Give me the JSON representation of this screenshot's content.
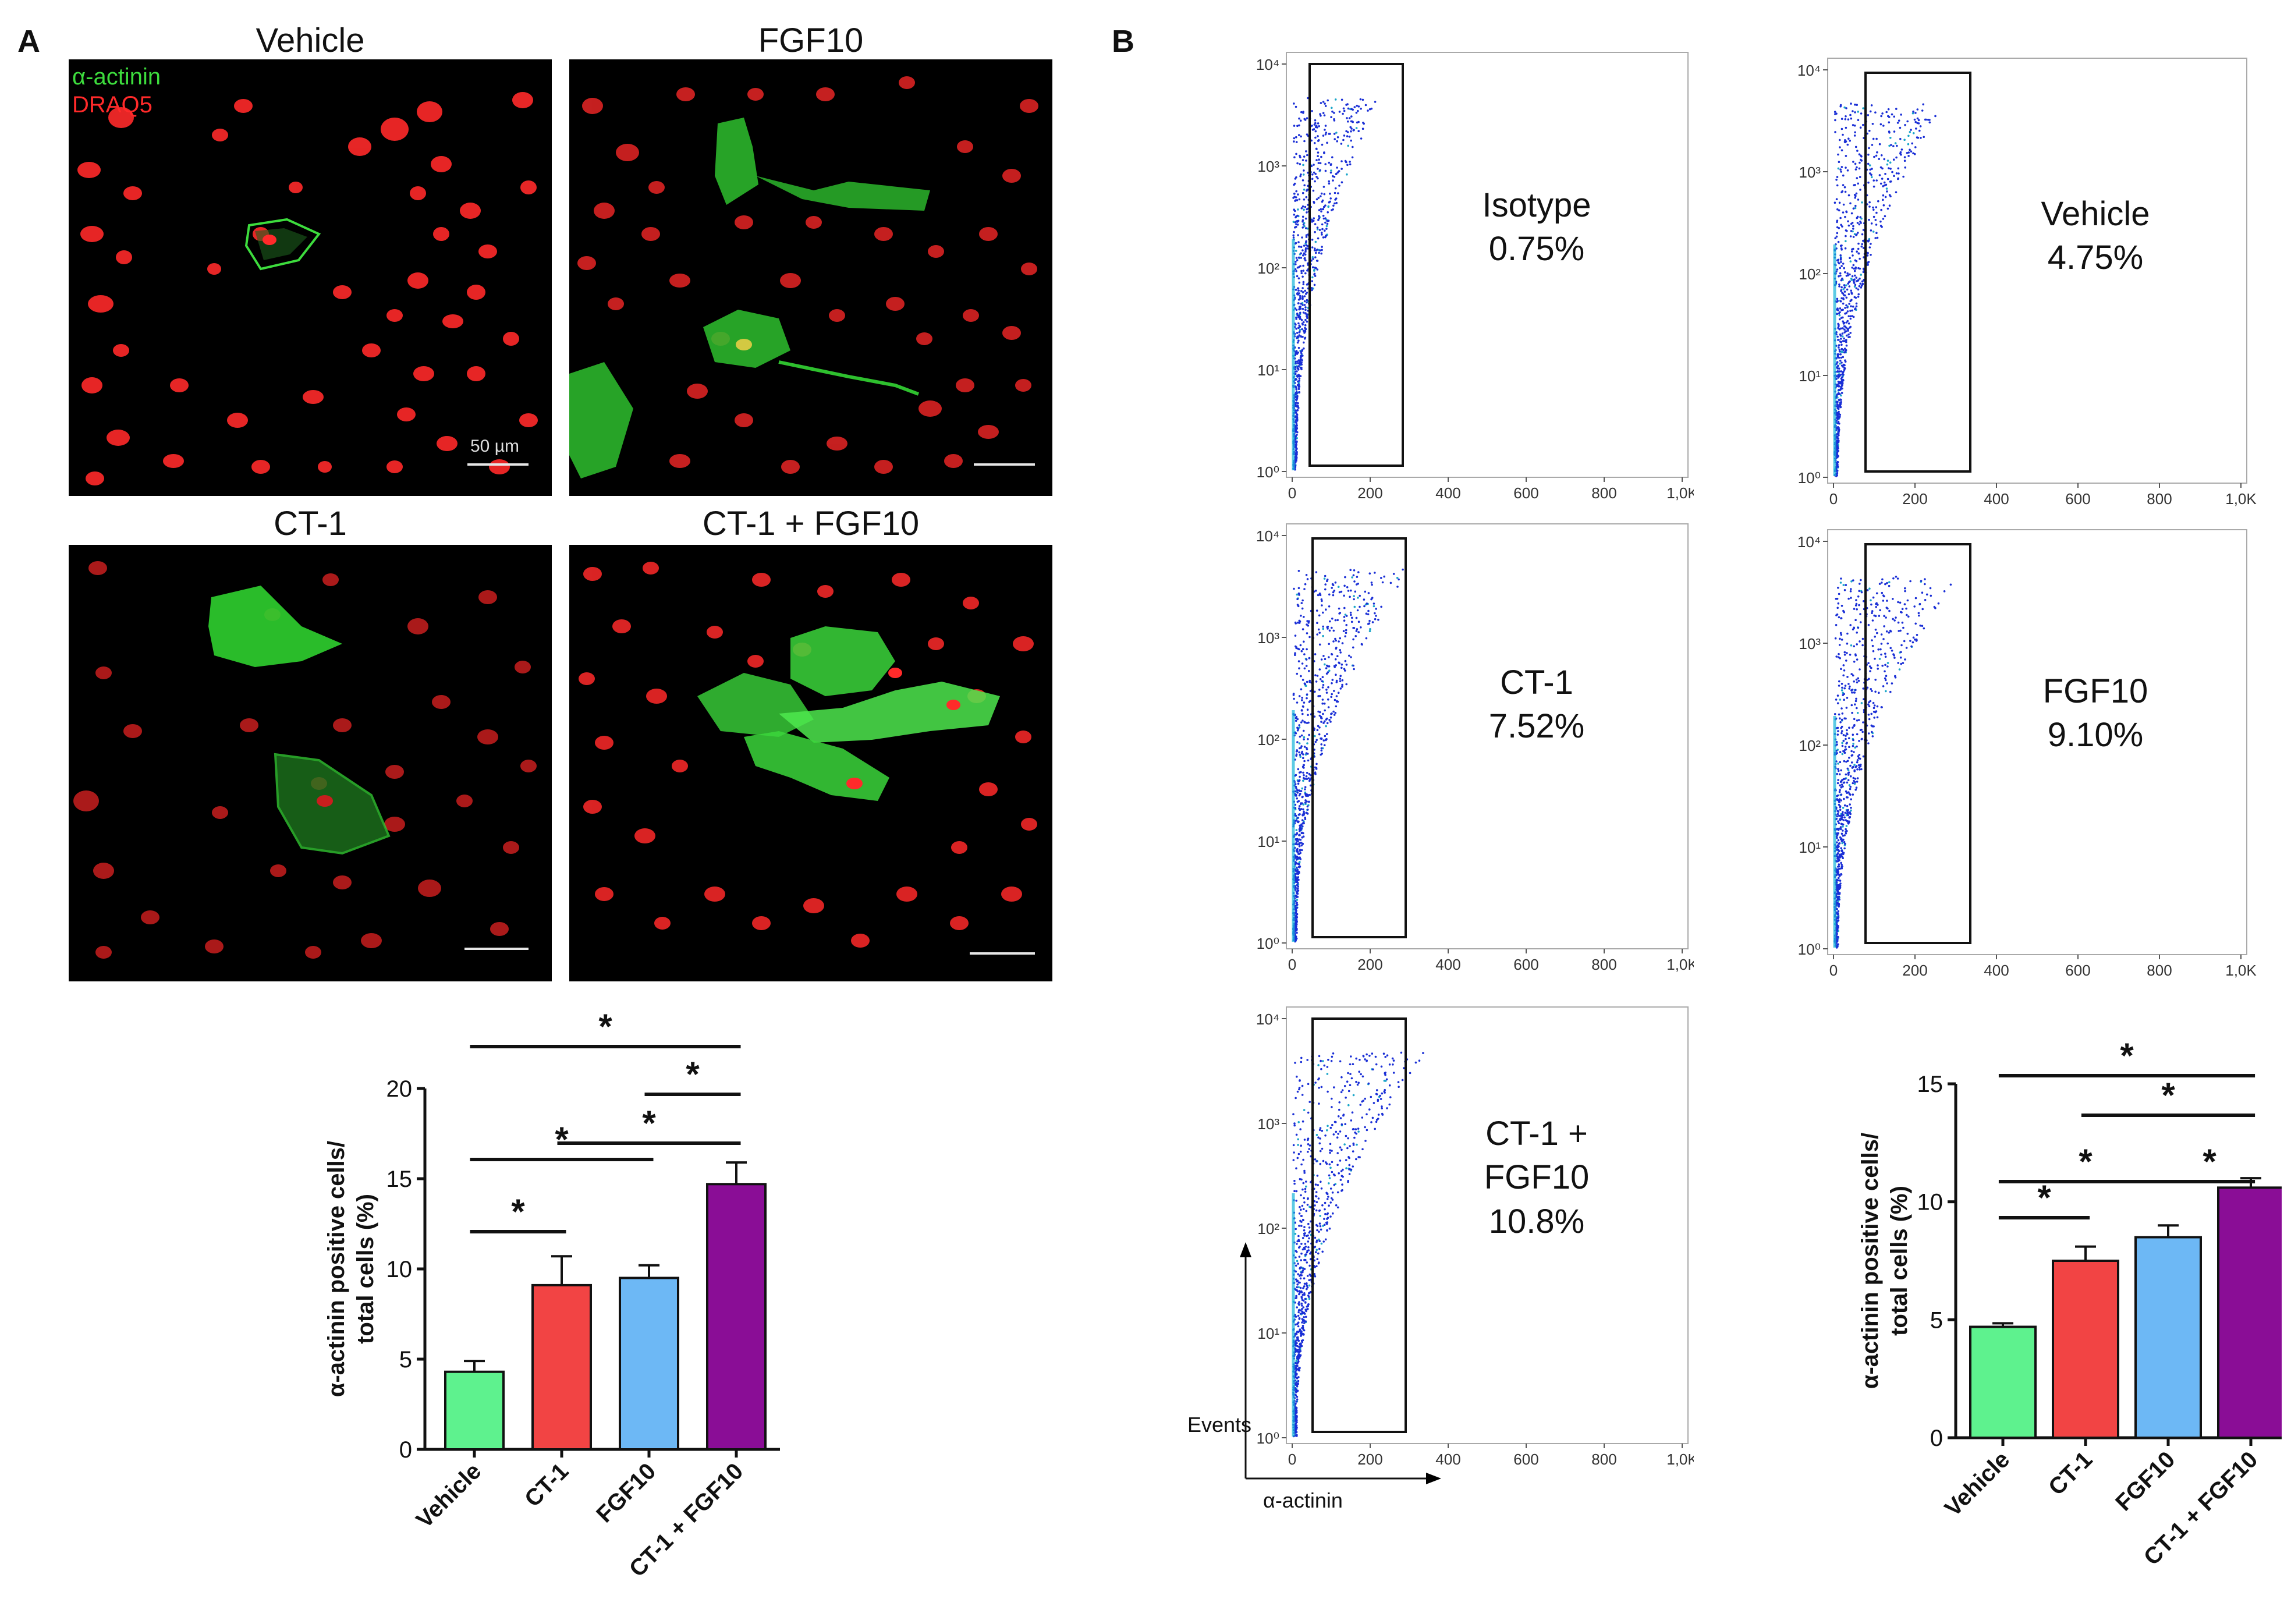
{
  "panels": {
    "a_letter": "A",
    "b_letter": "B"
  },
  "microscopy": {
    "legend": {
      "actinin": "α-actinin",
      "draq5": "DRAQ5",
      "actinin_color": "#3ddc3d",
      "draq5_color": "#ff2a2a"
    },
    "scale_bar_label": "50 µm",
    "panels": [
      {
        "title": "Vehicle"
      },
      {
        "title": "FGF10"
      },
      {
        "title": "CT-1"
      },
      {
        "title": "CT-1 + FGF10"
      }
    ]
  },
  "flow": {
    "panels": [
      {
        "label_line1": "Isotype",
        "label_line2": "0.75%"
      },
      {
        "label_line1": "Vehicle",
        "label_line2": "4.75%"
      },
      {
        "label_line1": "CT-1",
        "label_line2": "7.52%"
      },
      {
        "label_line1": "FGF10",
        "label_line2": "9.10%"
      },
      {
        "label_line1": "CT-1 +",
        "label_line2": "FGF10",
        "label_line3": "10.8%"
      }
    ],
    "x_ticks": [
      "0",
      "200",
      "400",
      "600",
      "800",
      "1,0K"
    ],
    "y_ticks": [
      "10⁰",
      "10¹",
      "10²",
      "10³",
      "10⁴"
    ],
    "axis_events_label": "Events",
    "axis_actinin_label": "α-actinin",
    "dot_color": "#1a2fd6"
  },
  "chart_data": [
    {
      "type": "bar",
      "categories": [
        "Vehicle",
        "CT-1",
        "FGF10",
        "CT-1 + FGF10"
      ],
      "values": [
        4.3,
        9.1,
        9.5,
        14.7
      ],
      "errors": [
        0.6,
        1.6,
        0.7,
        1.2
      ],
      "colors": [
        "#5ef28e",
        "#f24444",
        "#6db8f5",
        "#8a0d96"
      ],
      "ylabel": "α-actinin positive cells/ total cells (%)",
      "ylim": [
        0,
        20
      ],
      "yticks": [
        0,
        5,
        10,
        15,
        20
      ],
      "significance": [
        {
          "from": 0,
          "to": 1,
          "label": "*"
        },
        {
          "from": 0,
          "to": 2,
          "label": "*"
        },
        {
          "from": 1,
          "to": 3,
          "label": "*"
        },
        {
          "from": 2,
          "to": 3,
          "label": "*"
        },
        {
          "from": 0,
          "to": 3,
          "label": "*"
        }
      ]
    },
    {
      "type": "bar",
      "categories": [
        "Vehicle",
        "CT-1",
        "FGF10",
        "CT-1 + FGF10"
      ],
      "values": [
        4.7,
        7.5,
        8.5,
        10.6
      ],
      "errors": [
        0.15,
        0.6,
        0.5,
        0.4
      ],
      "colors": [
        "#5ef28e",
        "#f24444",
        "#6db8f5",
        "#8a0d96"
      ],
      "ylabel": "α-actinin positive cells/ total cells (%)",
      "ylim": [
        0,
        15
      ],
      "yticks": [
        0,
        5,
        10,
        15
      ],
      "significance": [
        {
          "from": 0,
          "to": 1,
          "label": "*"
        },
        {
          "from": 0,
          "to": 2,
          "label": "*"
        },
        {
          "from": 2,
          "to": 3,
          "label": "*"
        },
        {
          "from": 1,
          "to": 3,
          "label": "*"
        },
        {
          "from": 0,
          "to": 3,
          "label": "*"
        }
      ]
    }
  ]
}
